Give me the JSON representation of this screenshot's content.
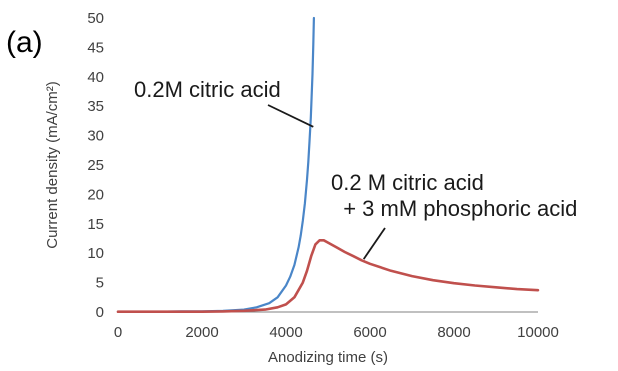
{
  "panel_label": "(a)",
  "colors": {
    "citric": "#4a86c8",
    "phosphoric": "#c0504d",
    "axis": "#808080",
    "text": "#404040"
  },
  "chart_data": {
    "type": "line",
    "title": "",
    "xlabel": "Anodizing time (s)",
    "ylabel": "Current density (mA/cm²)",
    "xlim": [
      0,
      10000
    ],
    "ylim": [
      0,
      50
    ],
    "xticks": [
      0,
      2000,
      4000,
      6000,
      8000,
      10000
    ],
    "yticks": [
      0,
      5,
      10,
      15,
      20,
      25,
      30,
      35,
      40,
      45,
      50
    ],
    "grid": false,
    "legend": "none",
    "series": [
      {
        "name": "0.2M citric acid",
        "color": "#4a86c8",
        "x": [
          0,
          500,
          1000,
          1500,
          2000,
          2500,
          3000,
          3300,
          3600,
          3800,
          4000,
          4100,
          4200,
          4300,
          4350,
          4400,
          4450,
          4500,
          4530,
          4560,
          4590,
          4610,
          4630,
          4650,
          4665
        ],
        "y": [
          0.05,
          0.05,
          0.05,
          0.1,
          0.1,
          0.2,
          0.4,
          0.8,
          1.5,
          2.5,
          4.5,
          6.0,
          8.0,
          11.0,
          13.0,
          15.5,
          18.5,
          22.5,
          25.5,
          29.0,
          33.0,
          36.5,
          40.5,
          45.5,
          50
        ]
      },
      {
        "name": "0.2 M citric acid\n+ 3 mM phosphoric acid",
        "color": "#c0504d",
        "x": [
          0,
          1000,
          2000,
          2500,
          3000,
          3500,
          3800,
          4000,
          4200,
          4400,
          4500,
          4600,
          4700,
          4800,
          4900,
          5000,
          5200,
          5400,
          5600,
          5800,
          6000,
          6500,
          7000,
          7500,
          8000,
          8500,
          9000,
          9500,
          10000
        ],
        "y": [
          0.05,
          0.05,
          0.05,
          0.1,
          0.2,
          0.4,
          0.8,
          1.3,
          2.5,
          5.0,
          7.0,
          9.5,
          11.5,
          12.2,
          12.2,
          11.8,
          11.0,
          10.2,
          9.5,
          8.8,
          8.2,
          7.0,
          6.1,
          5.4,
          4.9,
          4.5,
          4.2,
          3.9,
          3.7
        ]
      }
    ],
    "annotations": [
      {
        "lines": [
          "0.2M citric acid"
        ],
        "target_series": 0,
        "target_x": 4650,
        "target_y": 31.5
      },
      {
        "lines": [
          "0.2 M citric acid",
          "  + 3 mM phosphoric acid"
        ],
        "target_series": 1,
        "target_x": 5850,
        "target_y": 9.0
      }
    ]
  }
}
